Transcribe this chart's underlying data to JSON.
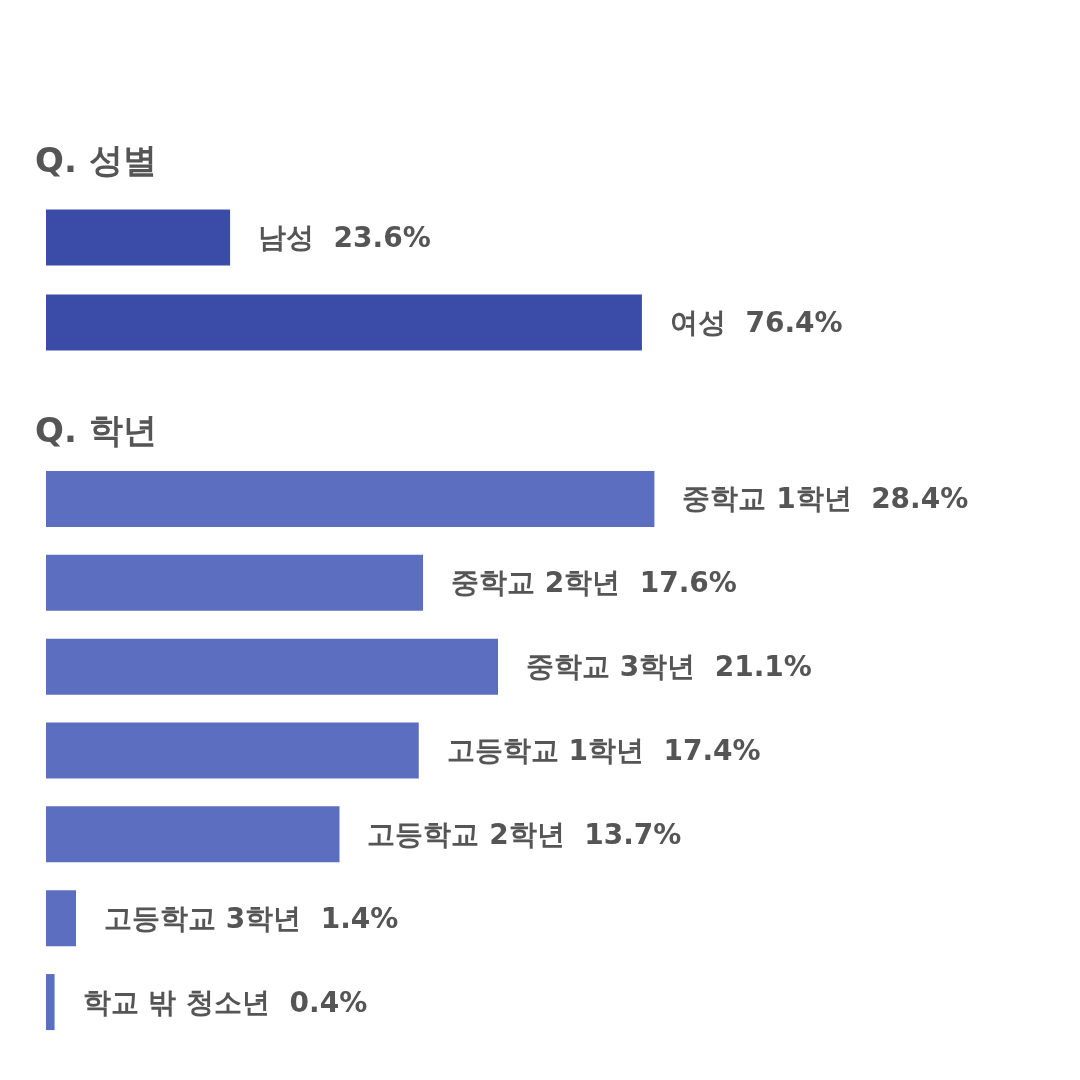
{
  "chart_data": [
    {
      "type": "bar",
      "orientation": "horizontal",
      "title": "Q. 성별",
      "categories": [
        null,
        null
      ],
      "values": [
        23.6,
        76.4
      ],
      "value_labels": [
        "남성  23.6%",
        "여성  76.4%"
      ],
      "color": "#3a4ca8"
    },
    {
      "type": "bar",
      "orientation": "horizontal",
      "title": "Q. 학년",
      "categories": [
        null,
        null,
        null,
        null,
        null,
        null,
        null
      ],
      "values": [
        28.4,
        17.6,
        21.1,
        17.4,
        13.7,
        1.4,
        0.4
      ],
      "value_labels": [
        "중학교 1학년  28.4%",
        "중학교 2학년  17.6%",
        "중학교 3학년  21.1%",
        "고등학교 1학년  17.4%",
        "고등학교 2학년  13.7%",
        "고등학교 3학년  1.4%",
        "학교 밖 청소년  0.4%"
      ],
      "color": "#5b6ebf"
    }
  ]
}
